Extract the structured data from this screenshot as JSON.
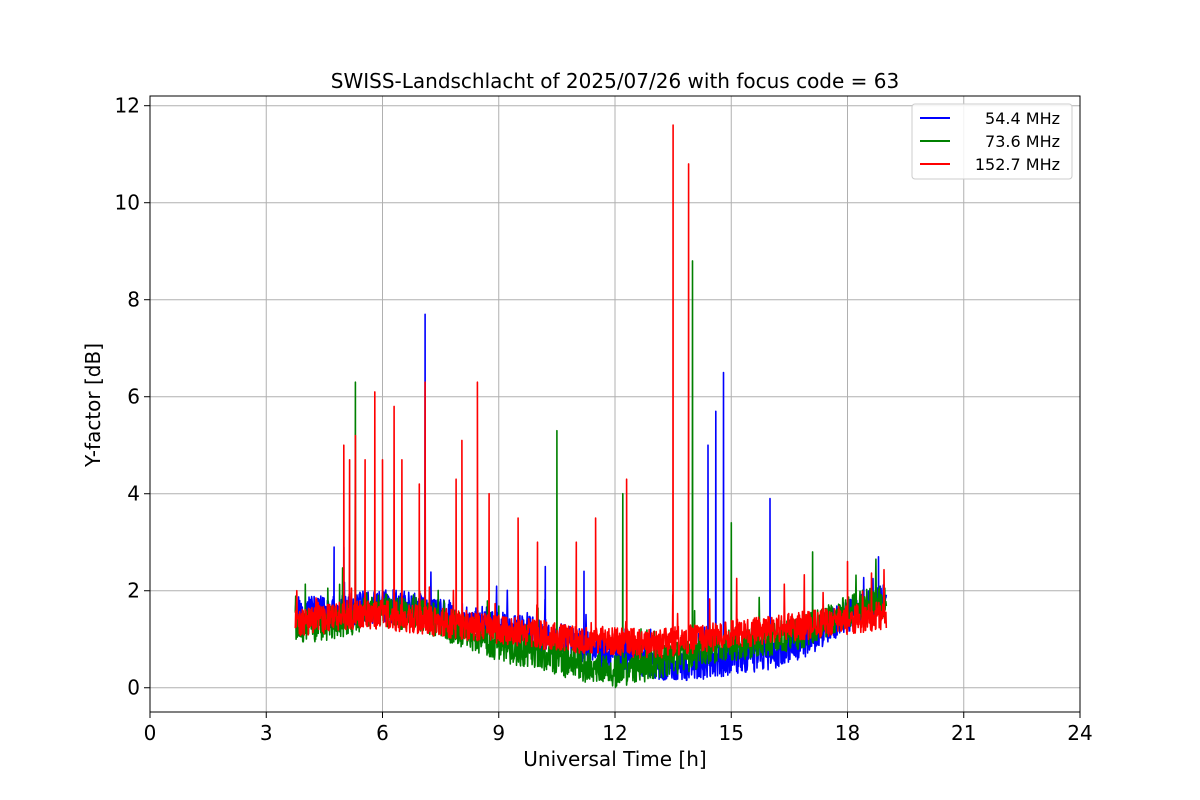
{
  "chart_data": {
    "type": "line",
    "title": "SWISS-Landschlacht of 2025/07/26 with focus code = 63",
    "xlabel": "Universal Time [h]",
    "ylabel": "Y-factor [dB]",
    "xlim": [
      0,
      24
    ],
    "ylim": [
      -0.5,
      12.2
    ],
    "xticks": [
      0,
      3,
      6,
      9,
      12,
      15,
      18,
      21,
      24
    ],
    "xtick_labels": [
      "0",
      "3",
      "6",
      "9",
      "12",
      "15",
      "18",
      "21",
      "24"
    ],
    "yticks": [
      0,
      2,
      4,
      6,
      8,
      10,
      12
    ],
    "ytick_labels": [
      "0",
      "2",
      "4",
      "6",
      "8",
      "10",
      "12"
    ],
    "grid": true,
    "legend": "top-right",
    "x_range": [
      3.75,
      19.0
    ],
    "series": [
      {
        "name": "54.4 MHz",
        "color": "#0000ff",
        "baseline": [
          [
            3.75,
            1.5
          ],
          [
            5.0,
            1.6
          ],
          [
            6.0,
            1.7
          ],
          [
            7.0,
            1.6
          ],
          [
            8.0,
            1.4
          ],
          [
            9.0,
            1.3
          ],
          [
            10.0,
            1.1
          ],
          [
            11.0,
            0.9
          ],
          [
            12.0,
            0.7
          ],
          [
            13.0,
            0.5
          ],
          [
            14.0,
            0.5
          ],
          [
            15.0,
            0.6
          ],
          [
            16.0,
            0.7
          ],
          [
            17.0,
            1.0
          ],
          [
            18.0,
            1.5
          ],
          [
            19.0,
            1.8
          ]
        ],
        "noise": 0.35,
        "spikes": [
          [
            4.75,
            2.9
          ],
          [
            5.0,
            2.9
          ],
          [
            7.1,
            7.7
          ],
          [
            10.2,
            2.5
          ],
          [
            11.2,
            2.4
          ],
          [
            14.4,
            5.0
          ],
          [
            14.6,
            5.7
          ],
          [
            14.8,
            6.5
          ],
          [
            16.0,
            3.9
          ],
          [
            18.8,
            2.7
          ]
        ]
      },
      {
        "name": "73.6 MHz",
        "color": "#008000",
        "baseline": [
          [
            3.75,
            1.2
          ],
          [
            5.0,
            1.4
          ],
          [
            6.0,
            1.6
          ],
          [
            7.0,
            1.5
          ],
          [
            8.0,
            1.2
          ],
          [
            9.0,
            0.9
          ],
          [
            10.0,
            0.7
          ],
          [
            11.0,
            0.5
          ],
          [
            12.0,
            0.35
          ],
          [
            13.0,
            0.5
          ],
          [
            14.0,
            0.7
          ],
          [
            15.0,
            0.9
          ],
          [
            16.0,
            1.0
          ],
          [
            17.0,
            1.2
          ],
          [
            18.0,
            1.6
          ],
          [
            19.0,
            1.8
          ]
        ],
        "noise": 0.35,
        "spikes": [
          [
            5.3,
            6.3
          ],
          [
            10.5,
            5.3
          ],
          [
            12.2,
            4.0
          ],
          [
            14.0,
            8.8
          ],
          [
            15.0,
            3.4
          ],
          [
            17.1,
            2.8
          ]
        ]
      },
      {
        "name": "152.7 MHz",
        "color": "#ff0000",
        "baseline": [
          [
            3.75,
            1.3
          ],
          [
            5.0,
            1.5
          ],
          [
            6.0,
            1.5
          ],
          [
            7.0,
            1.4
          ],
          [
            8.0,
            1.3
          ],
          [
            9.0,
            1.2
          ],
          [
            10.0,
            1.1
          ],
          [
            11.0,
            1.0
          ],
          [
            12.0,
            0.95
          ],
          [
            13.0,
            0.9
          ],
          [
            14.0,
            1.0
          ],
          [
            15.0,
            1.1
          ],
          [
            16.0,
            1.2
          ],
          [
            17.0,
            1.3
          ],
          [
            18.0,
            1.4
          ],
          [
            19.0,
            1.5
          ]
        ],
        "noise": 0.3,
        "spikes": [
          [
            5.0,
            5.0
          ],
          [
            5.15,
            4.7
          ],
          [
            5.3,
            5.2
          ],
          [
            5.55,
            4.7
          ],
          [
            5.8,
            6.1
          ],
          [
            6.0,
            4.7
          ],
          [
            6.3,
            5.8
          ],
          [
            6.5,
            4.7
          ],
          [
            6.95,
            4.2
          ],
          [
            7.1,
            6.3
          ],
          [
            7.9,
            4.3
          ],
          [
            8.05,
            5.1
          ],
          [
            8.45,
            6.3
          ],
          [
            8.75,
            4.0
          ],
          [
            9.5,
            3.5
          ],
          [
            10.0,
            3.0
          ],
          [
            11.0,
            3.0
          ],
          [
            11.5,
            3.5
          ],
          [
            12.3,
            4.3
          ],
          [
            13.5,
            11.6
          ],
          [
            13.9,
            10.8
          ],
          [
            18.0,
            2.6
          ]
        ]
      }
    ]
  }
}
